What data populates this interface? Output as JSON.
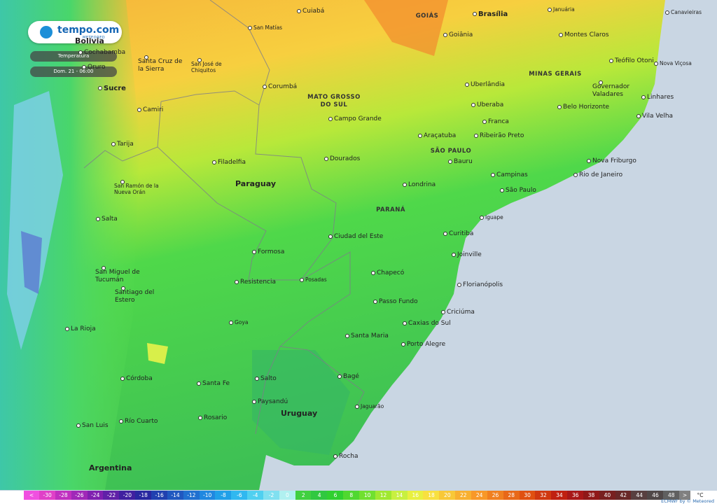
{
  "logo": {
    "brand": "tempo.com",
    "sub": "METEORED"
  },
  "layer": "Temperatura",
  "time": "Dom. 21 - 06:00",
  "places": [
    {
      "label": "Cuiabá"
    },
    {
      "label": "Brasília"
    },
    {
      "label": "Januária"
    },
    {
      "label": "Canavieiras"
    },
    {
      "label": "San Matías"
    },
    {
      "label": "GOIÁS"
    },
    {
      "label": "Goiânia"
    },
    {
      "label": "Montes Claros"
    },
    {
      "label": "Santa Cruz de la Sierra"
    },
    {
      "label": "San José de Chiquitos"
    },
    {
      "label": "Teófilo Otoni"
    },
    {
      "label": "Nova Viçosa"
    },
    {
      "label": "MINAS GERAIS"
    },
    {
      "label": "Corumbá"
    },
    {
      "label": "MATO GROSSO DO SUL"
    },
    {
      "label": "Uberlândia"
    },
    {
      "label": "Governador Valadares"
    },
    {
      "label": "Linhares"
    },
    {
      "label": "Sucre"
    },
    {
      "label": "Camiri"
    },
    {
      "label": "Uberaba"
    },
    {
      "label": "Belo Horizonte"
    },
    {
      "label": "Franca"
    },
    {
      "label": "Vila Velha"
    },
    {
      "label": "Campo Grande"
    },
    {
      "label": "Araçatuba"
    },
    {
      "label": "Ribeirão Preto"
    },
    {
      "label": "SÃO PAULO"
    },
    {
      "label": "Tarija"
    },
    {
      "label": "Filadelfia"
    },
    {
      "label": "Dourados"
    },
    {
      "label": "Bauru"
    },
    {
      "label": "Nova Friburgo"
    },
    {
      "label": "Campinas"
    },
    {
      "label": "Rio de Janeiro"
    },
    {
      "label": "San Ramón de la Nueva Orán"
    },
    {
      "label": "Paraguay"
    },
    {
      "label": "Londrina"
    },
    {
      "label": "São Paulo"
    },
    {
      "label": "PARANÁ"
    },
    {
      "label": "Salta"
    },
    {
      "label": "Iguape"
    },
    {
      "label": "Curitiba"
    },
    {
      "label": "Ciudad del Este"
    },
    {
      "label": "Formosa"
    },
    {
      "label": "Joinville"
    },
    {
      "label": "San Miguel de Tucumán"
    },
    {
      "label": "Chapecó"
    },
    {
      "label": "Resistencia"
    },
    {
      "label": "Posadas"
    },
    {
      "label": "Florianópolis"
    },
    {
      "label": "Santiago del Estero"
    },
    {
      "label": "Passo Fundo"
    },
    {
      "label": "Criciúma"
    },
    {
      "label": "Goya"
    },
    {
      "label": "Caxias do Sul"
    },
    {
      "label": "La Rioja"
    },
    {
      "label": "Santa Maria"
    },
    {
      "label": "Porto Alegre"
    },
    {
      "label": "Córdoba"
    },
    {
      "label": "Bagé"
    },
    {
      "label": "Salto"
    },
    {
      "label": "Santa Fe"
    },
    {
      "label": "Paysandú"
    },
    {
      "label": "Jaguarão"
    },
    {
      "label": "Uruguay"
    },
    {
      "label": "Rosario"
    },
    {
      "label": "Río Cuarto"
    },
    {
      "label": "San Luis"
    },
    {
      "label": "Rocha"
    },
    {
      "label": "Argentina"
    },
    {
      "label": "Bolivia"
    },
    {
      "label": "Cochabamba"
    },
    {
      "label": "Oruro"
    }
  ],
  "legend": {
    "low": "<",
    "values": [
      -30,
      -28,
      -26,
      -24,
      -22,
      -20,
      -18,
      -16,
      -14,
      -12,
      -10,
      -8,
      -6,
      -4,
      -2,
      0,
      2,
      4,
      6,
      8,
      10,
      12,
      14,
      16,
      18,
      20,
      22,
      24,
      26,
      28,
      30,
      32,
      34,
      36,
      38,
      40,
      42,
      44,
      46,
      48
    ],
    "high": ">",
    "unit": "°C"
  },
  "credit": "ECMWF by © Meteored"
}
